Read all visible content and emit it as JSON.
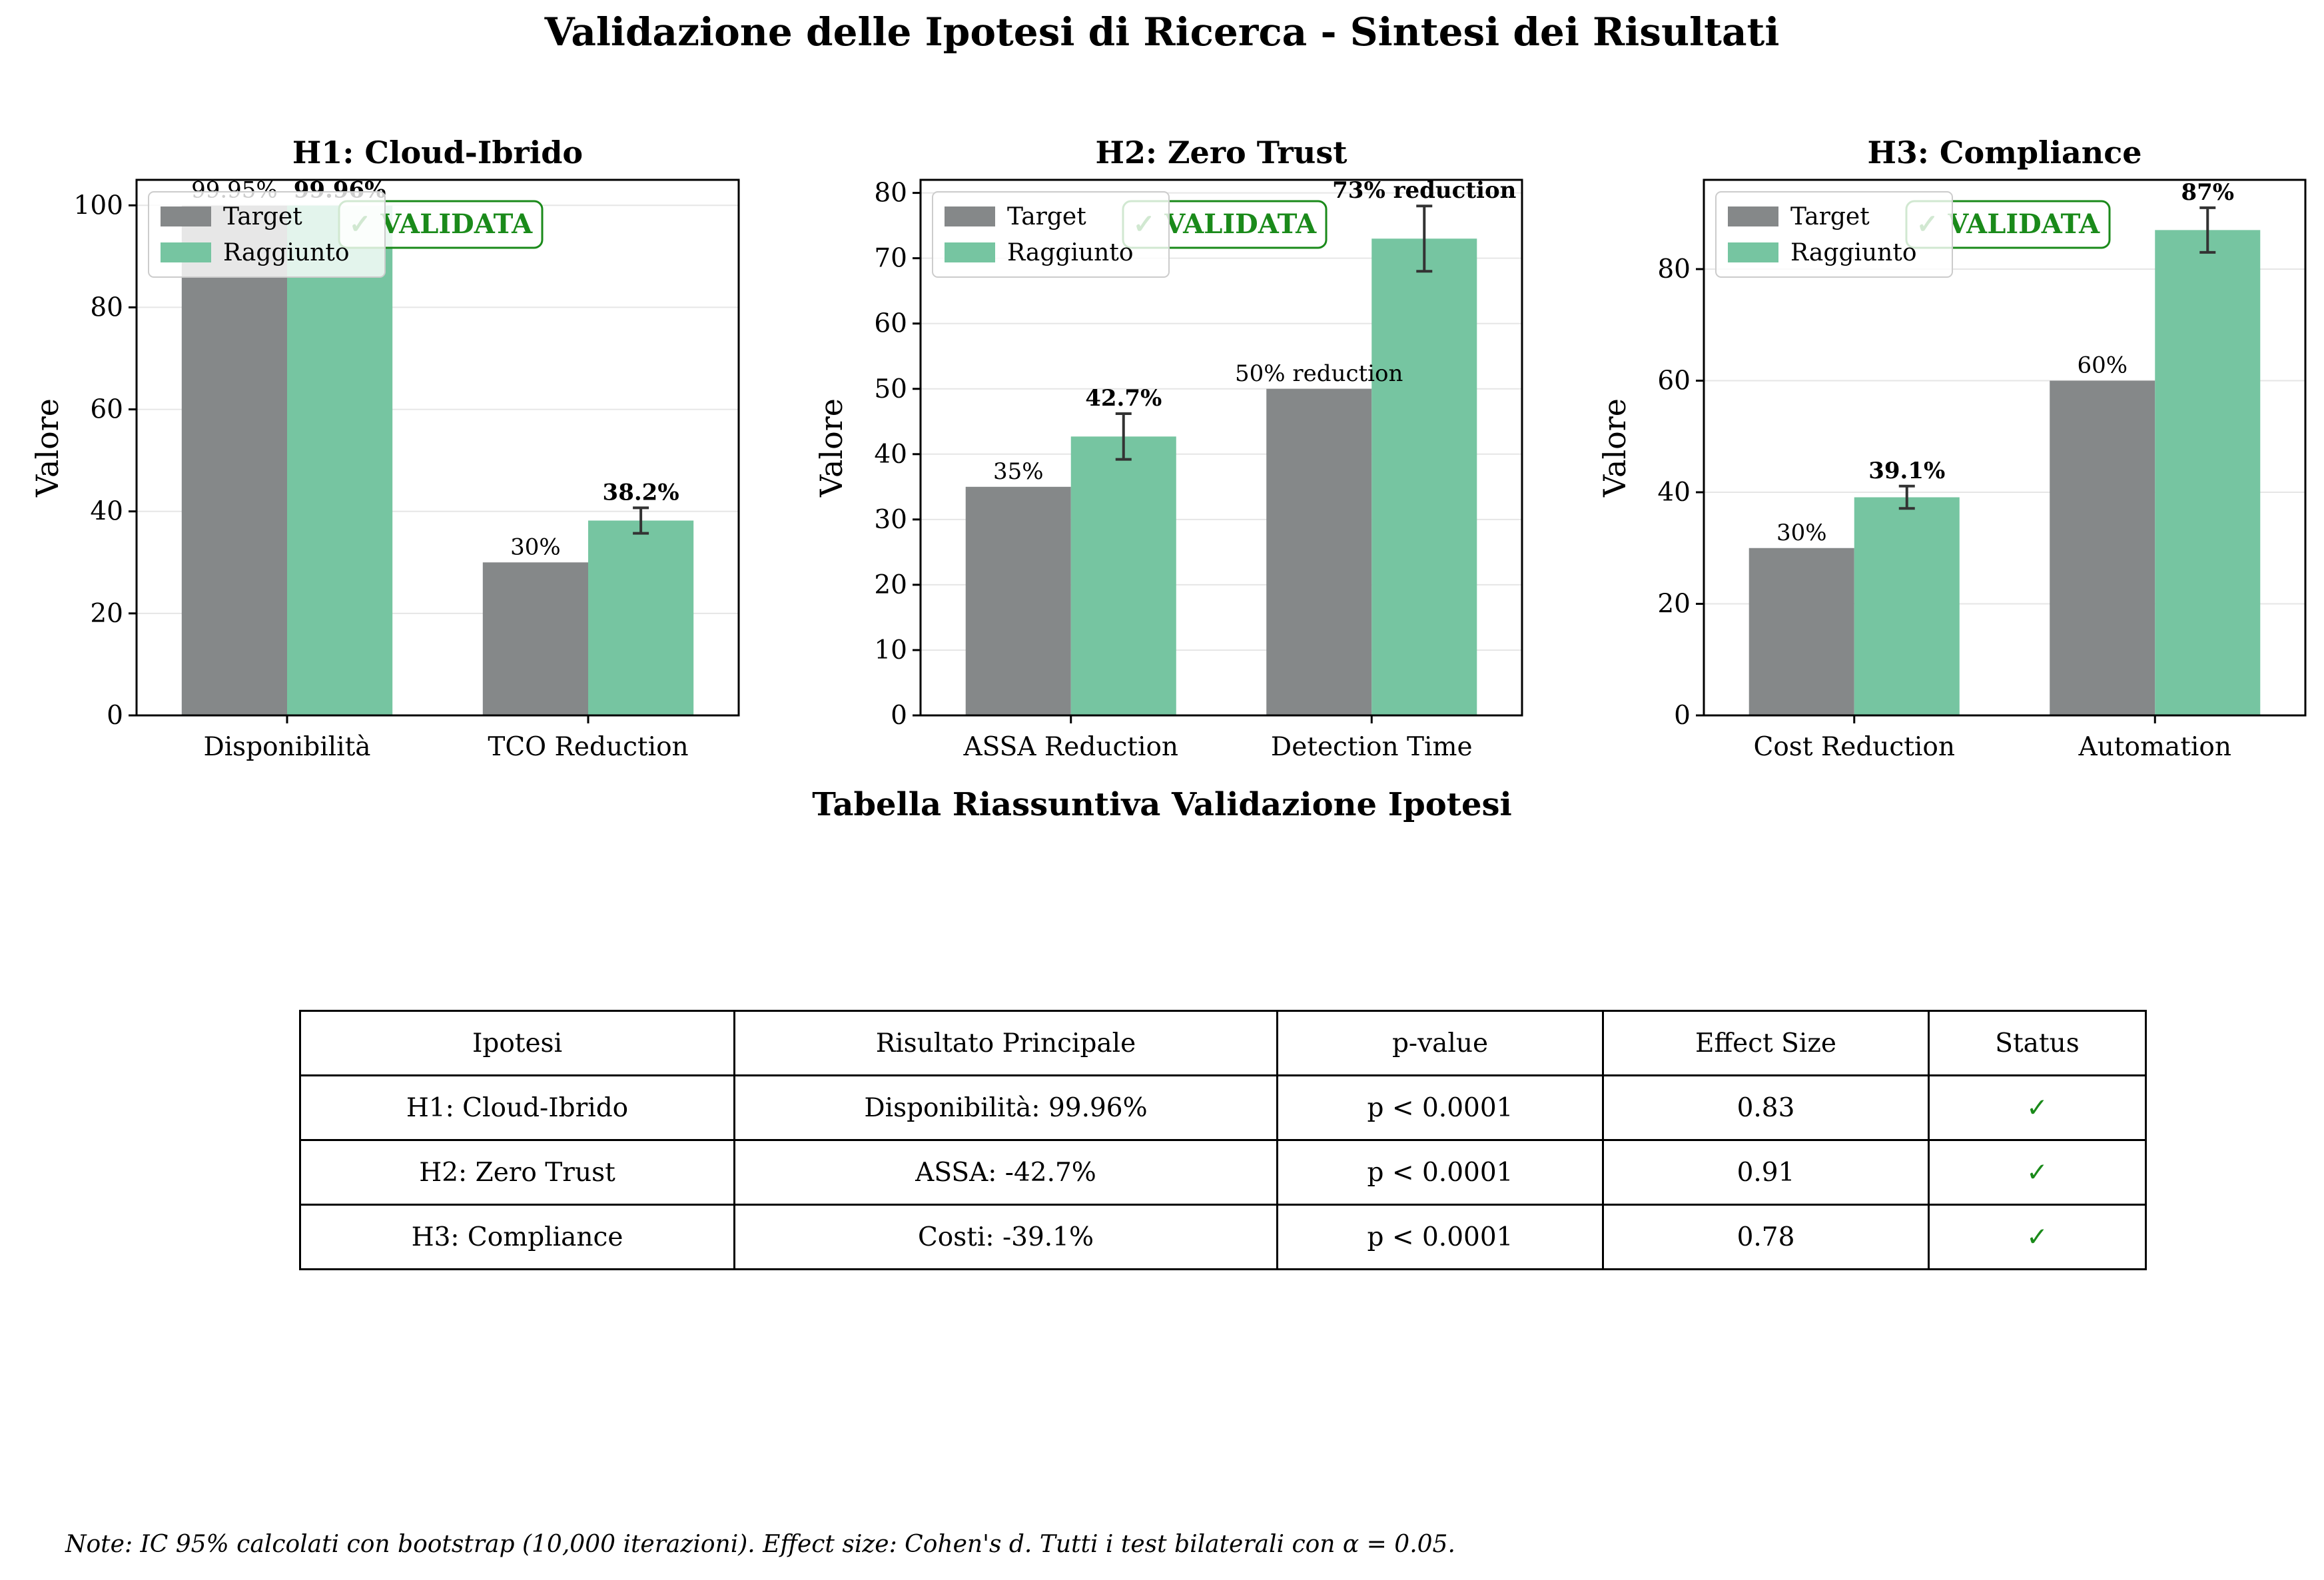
{
  "title": "Validazione delle Ipotesi di Ricerca - Sintesi dei Risultati",
  "colors": {
    "target": "#858889",
    "raggiunto": "#76c5a1",
    "validata": "#1a8a1a",
    "error": "#333333"
  },
  "chart_data": [
    {
      "type": "bar",
      "title": "H1: Cloud-Ibrido",
      "ylabel": "Valore",
      "categories": [
        "Disponibilità",
        "TCO Reduction"
      ],
      "ylim": [
        0,
        105
      ],
      "yticks": [
        0,
        20,
        40,
        60,
        80,
        100
      ],
      "series": [
        {
          "name": "Target",
          "values": [
            99.95,
            30
          ],
          "labels": [
            "99.95%",
            "30%"
          ]
        },
        {
          "name": "Raggiunto",
          "values": [
            99.96,
            38.2
          ],
          "labels": [
            "99.96%",
            "38.2%"
          ],
          "errors": [
            0,
            2.5
          ]
        }
      ],
      "legend": "upper-left",
      "badge": "✓ VALIDATA"
    },
    {
      "type": "bar",
      "title": "H2: Zero Trust",
      "ylabel": "Valore",
      "categories": [
        "ASSA Reduction",
        "Detection Time"
      ],
      "ylim": [
        0,
        82
      ],
      "yticks": [
        0,
        10,
        20,
        30,
        40,
        50,
        60,
        70,
        80
      ],
      "series": [
        {
          "name": "Target",
          "values": [
            35,
            50
          ],
          "labels": [
            "35%",
            "50% reduction"
          ]
        },
        {
          "name": "Raggiunto",
          "values": [
            42.7,
            73
          ],
          "labels": [
            "42.7%",
            "73% reduction"
          ],
          "errors": [
            3.5,
            5
          ]
        }
      ],
      "legend": "upper-left",
      "badge": "✓ VALIDATA"
    },
    {
      "type": "bar",
      "title": "H3: Compliance",
      "ylabel": "Valore",
      "categories": [
        "Cost Reduction",
        "Automation"
      ],
      "ylim": [
        0,
        96
      ],
      "yticks": [
        0,
        20,
        40,
        60,
        80
      ],
      "series": [
        {
          "name": "Target",
          "values": [
            30,
            60
          ],
          "labels": [
            "30%",
            "60%"
          ]
        },
        {
          "name": "Raggiunto",
          "values": [
            39.1,
            87
          ],
          "labels": [
            "39.1%",
            "87%"
          ],
          "errors": [
            2,
            4
          ]
        }
      ],
      "legend": "upper-left",
      "badge": "✓ VALIDATA"
    }
  ],
  "table": {
    "title": "Tabella Riassuntiva Validazione Ipotesi",
    "headers": [
      "Ipotesi",
      "Risultato Principale",
      "p-value",
      "Effect Size",
      "Status"
    ],
    "rows": [
      [
        "H1: Cloud-Ibrido",
        "Disponibilità: 99.96%",
        "p < 0.0001",
        "0.83",
        "✓"
      ],
      [
        "H2: Zero Trust",
        "ASSA: -42.7%",
        "p < 0.0001",
        "0.91",
        "✓"
      ],
      [
        "H3: Compliance",
        "Costi: -39.1%",
        "p < 0.0001",
        "0.78",
        "✓"
      ]
    ]
  },
  "note": "Note: IC 95% calcolati con bootstrap (10,000 iterazioni). Effect size: Cohen's d. Tutti i test bilaterali con α = 0.05."
}
